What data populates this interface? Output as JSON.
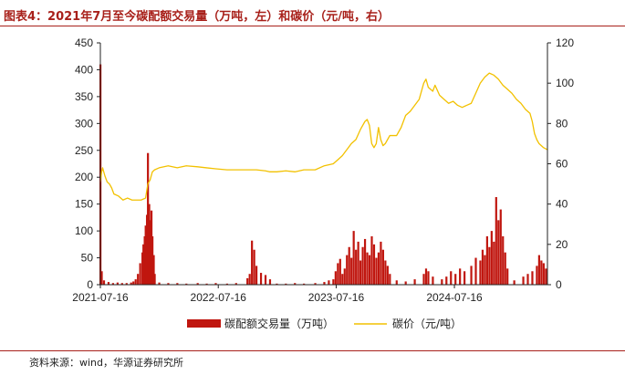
{
  "header": {
    "title": "图表4：2021年7月至今碳配额交易量（万吨，左）和碳价（元/吨，右）"
  },
  "footer": {
    "source": "资料来源：wind，华源证券研究所"
  },
  "chart_data": {
    "type": "bar+line",
    "x_start": "2021-07-16",
    "x_end": "2025-04-30",
    "x_ticks": [
      "2021-07-16",
      "2022-07-16",
      "2023-07-16",
      "2024-07-16"
    ],
    "y_left": {
      "min": 0,
      "max": 450,
      "ticks": [
        0,
        50,
        100,
        150,
        200,
        250,
        300,
        350,
        400,
        450
      ]
    },
    "y_right": {
      "min": 0,
      "max": 120,
      "ticks": [
        0,
        20,
        40,
        60,
        80,
        100,
        120
      ]
    },
    "grid": false,
    "legend_position": "bottom",
    "series": [
      {
        "name": "碳配额交易量（万吨）",
        "kind": "bar",
        "axis": "left",
        "color": "#c0160f",
        "points": [
          [
            "2021-07-16",
            410
          ],
          [
            "2021-07-20",
            25
          ],
          [
            "2021-07-27",
            8
          ],
          [
            "2021-08-10",
            5
          ],
          [
            "2021-08-24",
            3
          ],
          [
            "2021-09-07",
            4
          ],
          [
            "2021-09-21",
            3
          ],
          [
            "2021-10-05",
            3
          ],
          [
            "2021-10-19",
            4
          ],
          [
            "2021-10-26",
            6
          ],
          [
            "2021-11-02",
            10
          ],
          [
            "2021-11-09",
            20
          ],
          [
            "2021-11-16",
            40
          ],
          [
            "2021-11-23",
            60
          ],
          [
            "2021-11-26",
            75
          ],
          [
            "2021-11-30",
            90
          ],
          [
            "2021-12-03",
            110
          ],
          [
            "2021-12-07",
            130
          ],
          [
            "2021-12-10",
            245
          ],
          [
            "2021-12-14",
            150
          ],
          [
            "2021-12-17",
            120
          ],
          [
            "2021-12-21",
            138
          ],
          [
            "2021-12-24",
            90
          ],
          [
            "2021-12-28",
            55
          ],
          [
            "2021-12-31",
            20
          ],
          [
            "2022-01-14",
            4
          ],
          [
            "2022-02-11",
            3
          ],
          [
            "2022-03-11",
            3
          ],
          [
            "2022-04-08",
            2
          ],
          [
            "2022-05-13",
            3
          ],
          [
            "2022-06-10",
            2
          ],
          [
            "2022-07-08",
            3
          ],
          [
            "2022-08-12",
            2
          ],
          [
            "2022-09-09",
            3
          ],
          [
            "2022-10-14",
            12
          ],
          [
            "2022-10-21",
            20
          ],
          [
            "2022-10-28",
            82
          ],
          [
            "2022-11-04",
            65
          ],
          [
            "2022-11-11",
            35
          ],
          [
            "2022-11-25",
            22
          ],
          [
            "2022-12-09",
            18
          ],
          [
            "2022-12-23",
            10
          ],
          [
            "2023-01-13",
            2
          ],
          [
            "2023-02-10",
            2
          ],
          [
            "2023-03-10",
            3
          ],
          [
            "2023-04-07",
            2
          ],
          [
            "2023-05-12",
            3
          ],
          [
            "2023-06-09",
            5
          ],
          [
            "2023-06-23",
            8
          ],
          [
            "2023-07-07",
            10
          ],
          [
            "2023-07-14",
            25
          ],
          [
            "2023-07-21",
            40
          ],
          [
            "2023-07-28",
            48
          ],
          [
            "2023-08-04",
            20
          ],
          [
            "2023-08-11",
            30
          ],
          [
            "2023-08-18",
            55
          ],
          [
            "2023-08-25",
            70
          ],
          [
            "2023-09-01",
            50
          ],
          [
            "2023-09-08",
            100
          ],
          [
            "2023-09-15",
            65
          ],
          [
            "2023-09-22",
            80
          ],
          [
            "2023-09-29",
            45
          ],
          [
            "2023-10-06",
            70
          ],
          [
            "2023-10-13",
            85
          ],
          [
            "2023-10-20",
            60
          ],
          [
            "2023-10-27",
            55
          ],
          [
            "2023-11-03",
            90
          ],
          [
            "2023-11-10",
            75
          ],
          [
            "2023-11-17",
            50
          ],
          [
            "2023-11-24",
            60
          ],
          [
            "2023-12-01",
            80
          ],
          [
            "2023-12-08",
            65
          ],
          [
            "2023-12-15",
            45
          ],
          [
            "2023-12-22",
            35
          ],
          [
            "2023-12-29",
            20
          ],
          [
            "2024-01-19",
            8
          ],
          [
            "2024-02-16",
            6
          ],
          [
            "2024-03-15",
            10
          ],
          [
            "2024-04-12",
            20
          ],
          [
            "2024-04-19",
            30
          ],
          [
            "2024-04-26",
            25
          ],
          [
            "2024-05-10",
            15
          ],
          [
            "2024-06-07",
            10
          ],
          [
            "2024-06-21",
            15
          ],
          [
            "2024-07-05",
            25
          ],
          [
            "2024-07-19",
            20
          ],
          [
            "2024-08-02",
            30
          ],
          [
            "2024-08-16",
            25
          ],
          [
            "2024-09-06",
            35
          ],
          [
            "2024-09-20",
            50
          ],
          [
            "2024-10-04",
            45
          ],
          [
            "2024-10-11",
            65
          ],
          [
            "2024-10-18",
            55
          ],
          [
            "2024-10-25",
            90
          ],
          [
            "2024-11-01",
            70
          ],
          [
            "2024-11-08",
            100
          ],
          [
            "2024-11-15",
            80
          ],
          [
            "2024-11-22",
            163
          ],
          [
            "2024-11-29",
            120
          ],
          [
            "2024-12-06",
            140
          ],
          [
            "2024-12-13",
            90
          ],
          [
            "2024-12-20",
            60
          ],
          [
            "2024-12-27",
            30
          ],
          [
            "2025-01-17",
            8
          ],
          [
            "2025-02-14",
            15
          ],
          [
            "2025-02-28",
            20
          ],
          [
            "2025-03-14",
            25
          ],
          [
            "2025-03-28",
            35
          ],
          [
            "2025-04-04",
            55
          ],
          [
            "2025-04-11",
            45
          ],
          [
            "2025-04-18",
            40
          ],
          [
            "2025-04-25",
            30
          ]
        ]
      },
      {
        "name": "碳价（元/吨）",
        "kind": "line",
        "axis": "right",
        "color": "#f2c100",
        "points": [
          [
            "2021-07-16",
            51
          ],
          [
            "2021-07-20",
            56
          ],
          [
            "2021-07-23",
            58
          ],
          [
            "2021-07-30",
            54
          ],
          [
            "2021-08-06",
            51
          ],
          [
            "2021-08-13",
            50
          ],
          [
            "2021-08-20",
            48
          ],
          [
            "2021-08-27",
            45
          ],
          [
            "2021-09-10",
            44
          ],
          [
            "2021-09-24",
            42
          ],
          [
            "2021-10-08",
            43
          ],
          [
            "2021-10-22",
            42
          ],
          [
            "2021-11-05",
            42
          ],
          [
            "2021-11-19",
            42
          ],
          [
            "2021-12-03",
            43
          ],
          [
            "2021-12-10",
            50
          ],
          [
            "2021-12-17",
            52
          ],
          [
            "2021-12-24",
            56
          ],
          [
            "2021-12-31",
            57
          ],
          [
            "2022-01-14",
            58
          ],
          [
            "2022-02-11",
            59
          ],
          [
            "2022-03-11",
            58
          ],
          [
            "2022-04-08",
            59
          ],
          [
            "2022-05-13",
            58.5
          ],
          [
            "2022-06-10",
            58
          ],
          [
            "2022-07-08",
            57.5
          ],
          [
            "2022-08-12",
            57
          ],
          [
            "2022-09-09",
            57
          ],
          [
            "2022-10-14",
            57
          ],
          [
            "2022-11-11",
            57
          ],
          [
            "2022-12-09",
            56.5
          ],
          [
            "2022-12-23",
            56
          ],
          [
            "2023-01-13",
            56
          ],
          [
            "2023-02-10",
            56.5
          ],
          [
            "2023-03-10",
            56
          ],
          [
            "2023-04-07",
            57
          ],
          [
            "2023-05-12",
            57
          ],
          [
            "2023-06-09",
            59
          ],
          [
            "2023-07-07",
            60
          ],
          [
            "2023-07-21",
            62
          ],
          [
            "2023-08-04",
            64
          ],
          [
            "2023-08-18",
            67
          ],
          [
            "2023-09-01",
            70
          ],
          [
            "2023-09-15",
            72
          ],
          [
            "2023-09-29",
            77
          ],
          [
            "2023-10-13",
            81
          ],
          [
            "2023-10-20",
            82
          ],
          [
            "2023-10-27",
            79
          ],
          [
            "2023-11-03",
            70
          ],
          [
            "2023-11-10",
            68
          ],
          [
            "2023-11-17",
            70
          ],
          [
            "2023-11-24",
            78
          ],
          [
            "2023-12-01",
            72
          ],
          [
            "2023-12-08",
            69
          ],
          [
            "2023-12-15",
            70
          ],
          [
            "2023-12-22",
            72
          ],
          [
            "2023-12-29",
            74
          ],
          [
            "2024-01-19",
            74
          ],
          [
            "2024-02-02",
            78
          ],
          [
            "2024-02-16",
            84
          ],
          [
            "2024-03-01",
            86
          ],
          [
            "2024-03-15",
            89
          ],
          [
            "2024-03-29",
            92
          ],
          [
            "2024-04-12",
            100
          ],
          [
            "2024-04-19",
            102
          ],
          [
            "2024-04-26",
            98
          ],
          [
            "2024-05-10",
            96
          ],
          [
            "2024-05-17",
            99
          ],
          [
            "2024-05-31",
            94
          ],
          [
            "2024-06-14",
            92
          ],
          [
            "2024-06-28",
            90
          ],
          [
            "2024-07-12",
            91
          ],
          [
            "2024-07-26",
            89
          ],
          [
            "2024-08-09",
            88
          ],
          [
            "2024-08-23",
            89
          ],
          [
            "2024-09-06",
            90
          ],
          [
            "2024-09-20",
            95
          ],
          [
            "2024-10-04",
            100
          ],
          [
            "2024-10-18",
            103
          ],
          [
            "2024-11-01",
            105
          ],
          [
            "2024-11-15",
            104
          ],
          [
            "2024-11-29",
            102
          ],
          [
            "2024-12-13",
            99
          ],
          [
            "2024-12-27",
            97
          ],
          [
            "2025-01-10",
            95
          ],
          [
            "2025-01-24",
            92
          ],
          [
            "2025-02-07",
            90
          ],
          [
            "2025-02-21",
            87
          ],
          [
            "2025-03-07",
            85
          ],
          [
            "2025-03-14",
            81
          ],
          [
            "2025-03-21",
            75
          ],
          [
            "2025-03-28",
            72
          ],
          [
            "2025-04-04",
            70
          ],
          [
            "2025-04-11",
            69
          ],
          [
            "2025-04-18",
            68
          ],
          [
            "2025-04-30",
            67
          ]
        ]
      }
    ]
  }
}
